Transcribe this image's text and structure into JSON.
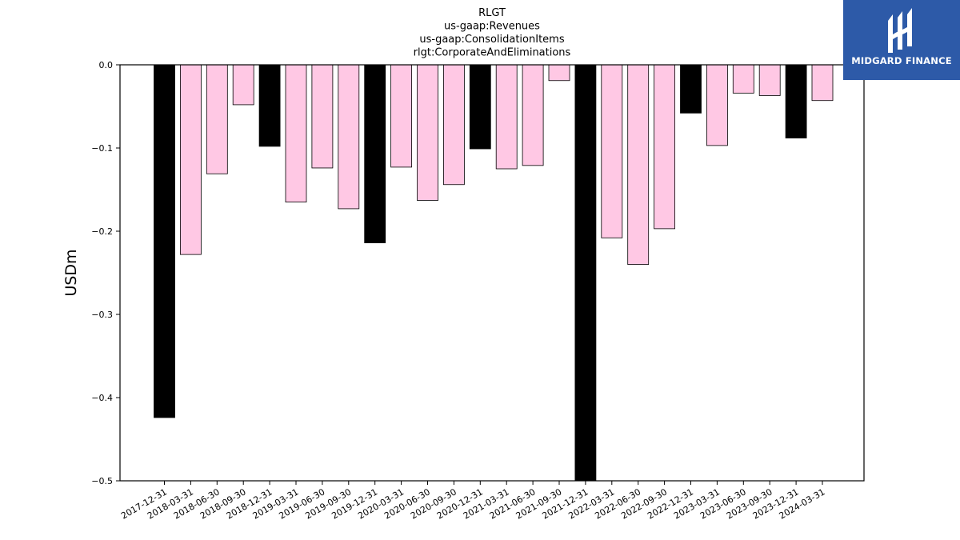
{
  "brand": {
    "name": "MIDGARD FINANCE",
    "bg_color": "#2d5aa8",
    "icon": "midgard-logo-icon"
  },
  "chart_data": {
    "type": "bar",
    "title_lines": [
      "RLGT",
      "us-gaap:Revenues",
      "us-gaap:ConsolidationItems",
      "rlgt:CorporateAndEliminations"
    ],
    "xlabel": "",
    "ylabel": "USDm",
    "ylim": [
      -0.5,
      0.0
    ],
    "yticks": [
      0.0,
      -0.1,
      -0.2,
      -0.3,
      -0.4,
      -0.5
    ],
    "ytick_labels": [
      "0.0",
      "−0.1",
      "−0.2",
      "−0.3",
      "−0.4",
      "−0.5"
    ],
    "grid": false,
    "legend": "none",
    "categories": [
      "2017-12-31",
      "2018-03-31",
      "2018-06-30",
      "2018-09-30",
      "2018-12-31",
      "2019-03-31",
      "2019-06-30",
      "2019-09-30",
      "2019-12-31",
      "2020-03-31",
      "2020-06-30",
      "2020-09-30",
      "2020-12-31",
      "2021-03-31",
      "2021-06-30",
      "2021-09-30",
      "2021-12-31",
      "2022-03-31",
      "2022-06-30",
      "2022-09-30",
      "2022-12-31",
      "2023-03-31",
      "2023-06-30",
      "2023-09-30",
      "2023-12-31",
      "2024-03-31"
    ],
    "values": [
      -0.424,
      -0.228,
      -0.131,
      -0.048,
      -0.098,
      -0.165,
      -0.124,
      -0.173,
      -0.214,
      -0.123,
      -0.163,
      -0.144,
      -0.101,
      -0.125,
      -0.121,
      -0.019,
      -0.5,
      -0.208,
      -0.24,
      -0.197,
      -0.058,
      -0.097,
      -0.034,
      -0.037,
      -0.088,
      -0.043
    ],
    "bar_colors": [
      "#000000",
      "#ffc8e4",
      "#ffc8e4",
      "#ffc8e4",
      "#000000",
      "#ffc8e4",
      "#ffc8e4",
      "#ffc8e4",
      "#000000",
      "#ffc8e4",
      "#ffc8e4",
      "#ffc8e4",
      "#000000",
      "#ffc8e4",
      "#ffc8e4",
      "#ffc8e4",
      "#000000",
      "#ffc8e4",
      "#ffc8e4",
      "#ffc8e4",
      "#000000",
      "#ffc8e4",
      "#ffc8e4",
      "#ffc8e4",
      "#000000",
      "#ffc8e4"
    ]
  }
}
